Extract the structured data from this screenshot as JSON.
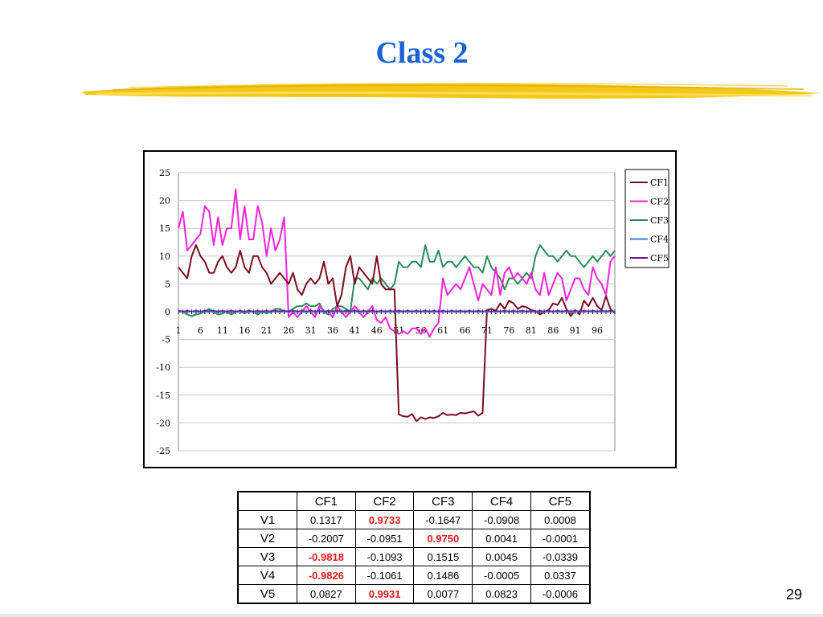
{
  "slide": {
    "title": "Class 2",
    "page_number": "29"
  },
  "chart_data": {
    "type": "line",
    "title": "",
    "xlabel": "",
    "ylabel": "",
    "ylim": [
      -25,
      25
    ],
    "xlim": [
      1,
      100
    ],
    "y_ticks": [
      25,
      20,
      15,
      10,
      5,
      0,
      -5,
      -10,
      -15,
      -20,
      -25
    ],
    "x_ticks": [
      1,
      6,
      11,
      16,
      21,
      26,
      31,
      36,
      41,
      46,
      51,
      56,
      61,
      66,
      71,
      76,
      81,
      86,
      91,
      96
    ],
    "grid": "horizontal",
    "legend_position": "right",
    "x": [
      1,
      2,
      3,
      4,
      5,
      6,
      7,
      8,
      9,
      10,
      11,
      12,
      13,
      14,
      15,
      16,
      17,
      18,
      19,
      20,
      21,
      22,
      23,
      24,
      25,
      26,
      27,
      28,
      29,
      30,
      31,
      32,
      33,
      34,
      35,
      36,
      37,
      38,
      39,
      40,
      41,
      42,
      43,
      44,
      45,
      46,
      47,
      48,
      49,
      50,
      51,
      52,
      53,
      54,
      55,
      56,
      57,
      58,
      59,
      60,
      61,
      62,
      63,
      64,
      65,
      66,
      67,
      68,
      69,
      70,
      71,
      72,
      73,
      74,
      75,
      76,
      77,
      78,
      79,
      80,
      81,
      82,
      83,
      84,
      85,
      86,
      87,
      88,
      89,
      90,
      91,
      92,
      93,
      94,
      95,
      96,
      97,
      98,
      99,
      100
    ],
    "series": [
      {
        "name": "CF1",
        "color": "#7b0d1e",
        "values": [
          8,
          7,
          6,
          10,
          12,
          10,
          9,
          7,
          7,
          9,
          10,
          8,
          7,
          8,
          11,
          8,
          7,
          10,
          10,
          8,
          7,
          5,
          6,
          7,
          6,
          5,
          7,
          4,
          3,
          5,
          6,
          5,
          6,
          9,
          5,
          6,
          1,
          3,
          8,
          10,
          5,
          8,
          7,
          6,
          5,
          10,
          5,
          4,
          4,
          4,
          -18.5,
          -18.8,
          -18.9,
          -18.4,
          -19.7,
          -19,
          -19.3,
          -19,
          -19.1,
          -18.8,
          -18.2,
          -18.6,
          -18.5,
          -18.6,
          -18.2,
          -18.3,
          -18.1,
          -17.9,
          -18.7,
          -18.2,
          0.3,
          0.5,
          0.2,
          1.5,
          0.5,
          2,
          1.5,
          0.5,
          1,
          0.8,
          0.3,
          0.1,
          -0.5,
          0,
          0.3,
          1.5,
          1.2,
          2.5,
          0.5,
          -0.8,
          0.3,
          -0.5,
          2,
          1,
          2.5,
          1,
          0.3,
          2.8,
          0.5,
          -0.3
        ]
      },
      {
        "name": "CF2",
        "color": "#ff22dd",
        "values": [
          15,
          18,
          11,
          12,
          13,
          14,
          19,
          18,
          12,
          17,
          12,
          15,
          15,
          22,
          13,
          19,
          13,
          13,
          19,
          16,
          10,
          15,
          11,
          13,
          17,
          -1,
          0,
          -1,
          0,
          1,
          0,
          -1,
          1,
          0,
          0,
          -1,
          1,
          0,
          -1,
          0,
          1,
          0,
          -1,
          0,
          1,
          -1.5,
          -2,
          -1,
          -3,
          -3.5,
          -4,
          -3.5,
          -4,
          -3,
          -3,
          -4,
          -3,
          -4.5,
          -3,
          -2,
          6,
          3,
          4,
          5,
          4,
          6,
          8,
          5,
          2,
          5,
          4,
          3,
          8,
          3,
          7,
          8,
          6,
          7,
          6,
          5,
          7,
          4,
          3,
          7,
          3,
          5,
          7,
          6,
          2,
          4,
          6,
          6,
          4,
          3,
          8,
          6,
          5,
          3,
          9,
          10
        ]
      },
      {
        "name": "CF3",
        "color": "#2d8a5a",
        "values": [
          0,
          0,
          -0.5,
          -0.8,
          -0.5,
          -0.3,
          0,
          0.5,
          0,
          -0.5,
          -0.3,
          0,
          -0.5,
          0,
          0,
          -0.3,
          0,
          0,
          -0.5,
          0,
          -0.3,
          0,
          0.5,
          0.5,
          0,
          0,
          0.5,
          1,
          1,
          1.5,
          1,
          1,
          1.5,
          0,
          -0.5,
          0.5,
          1,
          1,
          0.5,
          0,
          6,
          6,
          5,
          4,
          6,
          5,
          6,
          5,
          4,
          5,
          9,
          8,
          8,
          9,
          9,
          8,
          12,
          9,
          9,
          11,
          8,
          9,
          9,
          8,
          9,
          10,
          9,
          8,
          8,
          7,
          10,
          8,
          7,
          6,
          4,
          6,
          6,
          5,
          6,
          7,
          6,
          10,
          12,
          11,
          10,
          10,
          9,
          10,
          11,
          10,
          10,
          9,
          8,
          9,
          10,
          9,
          10,
          11,
          10,
          11
        ]
      },
      {
        "name": "CF4",
        "color": "#3a78e0",
        "values": [
          0,
          0,
          0,
          0,
          0,
          0,
          0,
          0,
          0,
          0,
          0,
          0,
          0,
          0,
          0,
          0,
          0,
          0,
          0,
          0,
          0,
          0,
          0,
          0,
          0,
          0,
          0,
          0,
          0,
          0,
          0,
          0,
          0,
          0,
          0,
          0,
          0,
          0,
          0,
          0,
          0,
          0,
          0,
          0,
          0,
          0,
          0,
          0,
          0,
          0,
          0,
          0,
          0,
          0,
          0,
          0,
          0,
          0,
          0,
          0,
          0,
          0,
          0,
          0,
          0,
          0,
          0,
          0,
          0,
          0,
          0,
          0,
          0,
          0,
          0,
          0,
          0,
          0,
          0,
          0,
          0,
          0,
          0,
          0,
          0,
          0,
          0,
          0,
          0,
          0,
          0,
          0,
          0,
          0,
          0,
          0,
          0,
          0,
          0,
          0
        ]
      },
      {
        "name": "CF5",
        "color": "#6a1a8a",
        "values": [
          0.2,
          0.1,
          0.2,
          0.1,
          0.2,
          0.1,
          0.2,
          0.1,
          0.2,
          0.1,
          0.2,
          0.1,
          0.2,
          0.1,
          0.2,
          0.1,
          0.2,
          0.1,
          0.2,
          0.1,
          0.2,
          0.1,
          0.2,
          0.1,
          0.2,
          0.1,
          0.2,
          0.1,
          0.2,
          0.1,
          0.2,
          0.1,
          0.2,
          0.1,
          0.2,
          0.1,
          0.2,
          0.1,
          0.2,
          0.1,
          0.2,
          0.1,
          0.2,
          0.1,
          0.2,
          0.1,
          0.2,
          0.1,
          0.2,
          0.1,
          0.2,
          0.1,
          0.2,
          0.1,
          0.2,
          0.1,
          0.2,
          0.1,
          0.2,
          0.1,
          0.2,
          0.1,
          0.2,
          0.1,
          0.2,
          0.1,
          0.2,
          0.1,
          0.2,
          0.1,
          0.2,
          0.1,
          0.2,
          0.1,
          0.2,
          0.1,
          0.2,
          0.1,
          0.2,
          0.1,
          0.2,
          0.1,
          0.2,
          0.1,
          0.2,
          0.1,
          0.2,
          0.1,
          0.2,
          0.1,
          0.2,
          0.1,
          0.2,
          0.1,
          0.2,
          0.1,
          0.2,
          0.1,
          0.2,
          0.1
        ]
      }
    ]
  },
  "table": {
    "headers": [
      "",
      "CF1",
      "CF2",
      "CF3",
      "CF4",
      "CF5"
    ],
    "rows": [
      {
        "label": "V1",
        "cells": [
          {
            "v": "0.1317",
            "hl": false
          },
          {
            "v": "0.9733",
            "hl": true
          },
          {
            "v": "-0.1647",
            "hl": false
          },
          {
            "v": "-0.0908",
            "hl": false
          },
          {
            "v": "0.0008",
            "hl": false
          }
        ]
      },
      {
        "label": "V2",
        "cells": [
          {
            "v": "-0.2007",
            "hl": false
          },
          {
            "v": "-0.0951",
            "hl": false
          },
          {
            "v": "0.9750",
            "hl": true
          },
          {
            "v": "0.0041",
            "hl": false
          },
          {
            "v": "-0.0001",
            "hl": false
          }
        ]
      },
      {
        "label": "V3",
        "cells": [
          {
            "v": "-0.9818",
            "hl": true
          },
          {
            "v": "-0.1093",
            "hl": false
          },
          {
            "v": "0.1515",
            "hl": false
          },
          {
            "v": "0.0045",
            "hl": false
          },
          {
            "v": "-0.0339",
            "hl": false
          }
        ]
      },
      {
        "label": "V4",
        "cells": [
          {
            "v": "-0.9826",
            "hl": true
          },
          {
            "v": "-0.1061",
            "hl": false
          },
          {
            "v": "0.1486",
            "hl": false
          },
          {
            "v": "-0.0005",
            "hl": false
          },
          {
            "v": "0.0337",
            "hl": false
          }
        ]
      },
      {
        "label": "V5",
        "cells": [
          {
            "v": "0.0827",
            "hl": false
          },
          {
            "v": "0.9931",
            "hl": true
          },
          {
            "v": "0.0077",
            "hl": false
          },
          {
            "v": "0.0823",
            "hl": false
          },
          {
            "v": "-0.0006",
            "hl": false
          }
        ]
      }
    ],
    "highlight_color": "#e01b1b"
  },
  "theme": {
    "title_color": "#1a63d6",
    "brush_color": "#f2c300"
  }
}
